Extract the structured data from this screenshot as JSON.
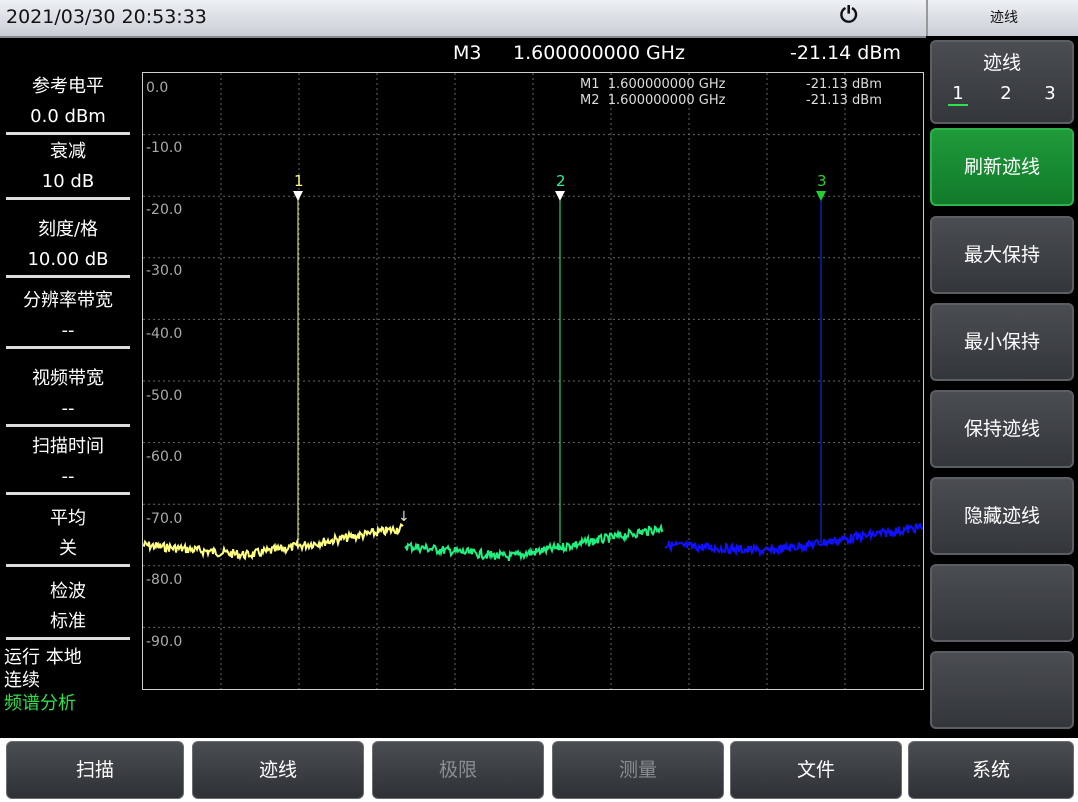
{
  "status": {
    "datetime": "2021/03/30  20:53:33",
    "power_icon": "plug-icon"
  },
  "menu": {
    "title": "迹线",
    "trace_select": {
      "label": "迹线",
      "options": [
        "1",
        "2",
        "3"
      ],
      "selected": "1"
    },
    "keys": [
      "刷新迹线",
      "最大保持",
      "最小保持",
      "保持迹线",
      "隐藏迹线",
      "",
      ""
    ],
    "active_key": "刷新迹线"
  },
  "readout": {
    "marker": "M3",
    "freq": "1.600000000 GHz",
    "level": "-21.14 dBm"
  },
  "marker_table": [
    {
      "name": "M1",
      "freq": "1.600000000 GHz",
      "level": "-21.13 dBm"
    },
    {
      "name": "M2",
      "freq": "1.600000000 GHz",
      "level": "-21.13 dBm"
    }
  ],
  "left_panel": {
    "ref_level": {
      "label": "参考电平",
      "value": "0.0 dBm"
    },
    "atten": {
      "label": "衰减",
      "value": "10 dB"
    },
    "scale": {
      "label": "刻度/格",
      "value": "10.00 dB"
    },
    "rbw": {
      "label": "分辨率带宽",
      "value": "--"
    },
    "vbw": {
      "label": "视频带宽",
      "value": "--"
    },
    "sweep_time": {
      "label": "扫描时间",
      "value": "--"
    },
    "average": {
      "label": "平均",
      "value": "关"
    },
    "detector": {
      "label": "检波",
      "value": "标准"
    },
    "run": "运行  本地",
    "continuous": "连续",
    "mode": "频谱分析"
  },
  "y_ticks": [
    "0.0",
    "-10.0",
    "-20.0",
    "-30.0",
    "-40.0",
    "-50.0",
    "-60.0",
    "-70.0",
    "-80.0",
    "-90.0"
  ],
  "markers_on_plot": [
    {
      "label": "1",
      "color": "#ffff80"
    },
    {
      "label": "2",
      "color": "#30f090"
    },
    {
      "label": "3",
      "color": "#20d030"
    }
  ],
  "traces": [
    {
      "name": "1",
      "color": "#ffff80"
    },
    {
      "name": "2",
      "color": "#20f080"
    },
    {
      "name": "3",
      "color": "#1010ff"
    }
  ],
  "bottom_keys": [
    {
      "label": "扫描",
      "enabled": true
    },
    {
      "label": "迹线",
      "enabled": true
    },
    {
      "label": "极限",
      "enabled": false
    },
    {
      "label": "测量",
      "enabled": false
    },
    {
      "label": "文件",
      "enabled": true
    },
    {
      "label": "系统",
      "enabled": true
    }
  ]
}
